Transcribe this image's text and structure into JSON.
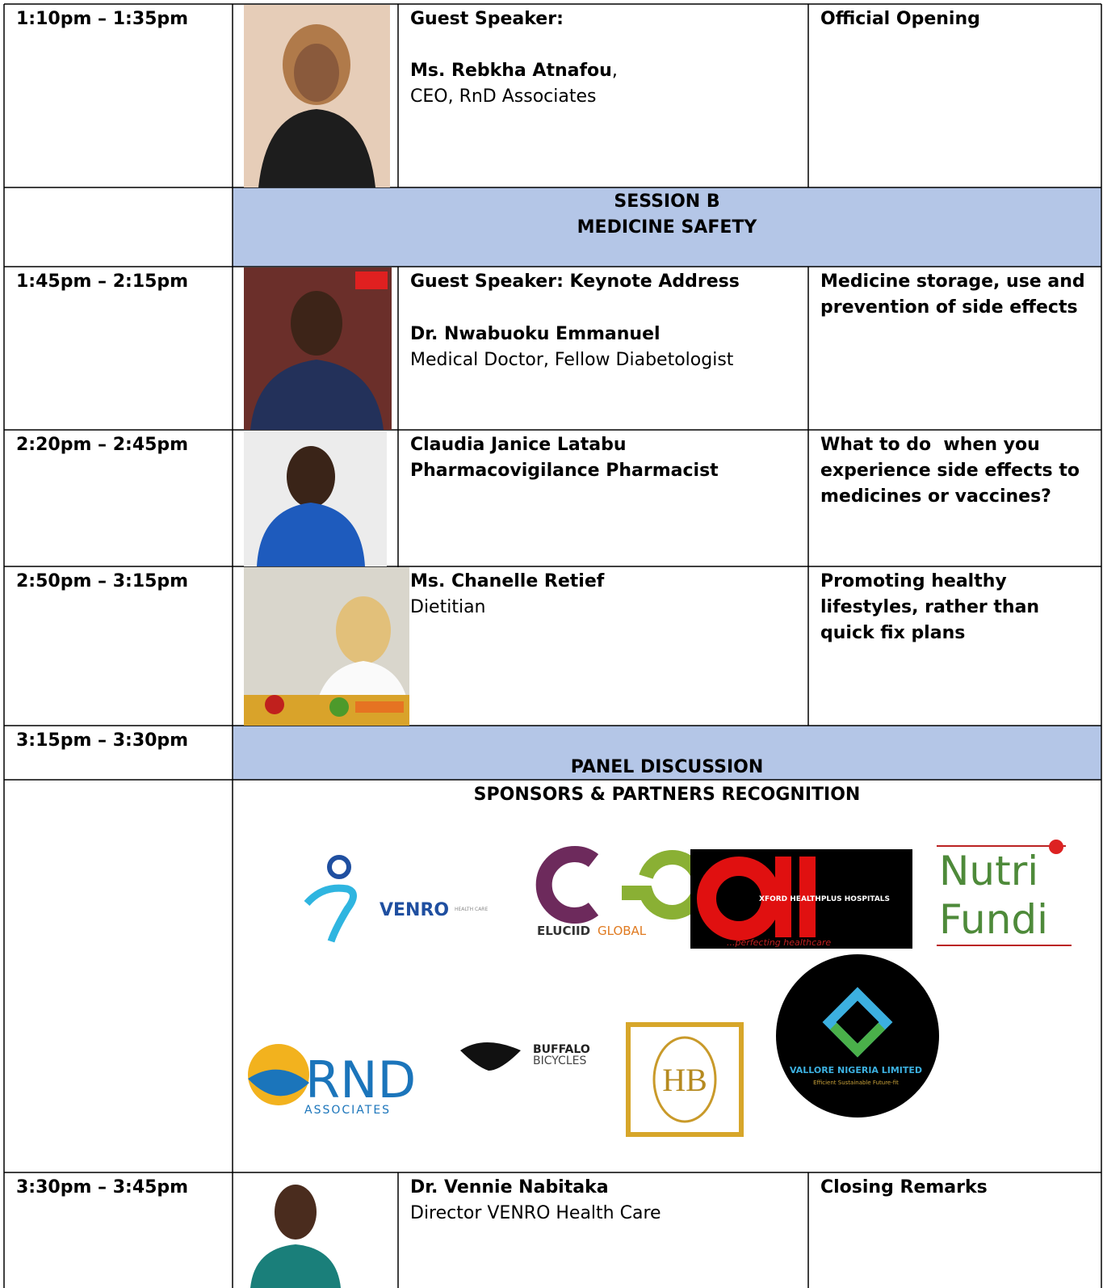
{
  "agenda": {
    "row1": {
      "time": "1:10pm – 1:35pm",
      "label": "Guest Speaker:",
      "name": "Ms. Rebkha Atnafou",
      "name_punctuation": ",",
      "role": "CEO, RnD Associates",
      "topic": "Official Opening"
    },
    "session_b": {
      "title": "SESSION B",
      "subtitle": "MEDICINE SAFETY"
    },
    "row2": {
      "time": "1:45pm – 2:15pm",
      "label": "Guest Speaker: Keynote Address",
      "name": "Dr. Nwabuoku Emmanuel",
      "role": "Medical Doctor, Fellow Diabetologist",
      "topic": "Medicine storage, use and prevention of side effects"
    },
    "row3": {
      "time": "2:20pm – 2:45pm",
      "name": "Claudia Janice Latabu",
      "role": "Pharmacovigilance Pharmacist",
      "topic": "What to do  when you experience side effects to medicines or vaccines?"
    },
    "row4": {
      "time": "2:50pm – 3:15pm",
      "name": "Ms. Chanelle Retief",
      "role": "Dietitian",
      "topic": "Promoting healthy lifestyles, rather than quick fix plans"
    },
    "panel": {
      "time": "3:15pm – 3:30pm",
      "title": "PANEL DISCUSSION"
    },
    "sponsors": {
      "title": "SPONSORS & PARTNERS RECOGNITION",
      "logos": {
        "venro": {
          "name": "VENRO",
          "tag": "HEALTH CARE"
        },
        "elucid": {
          "name": "ELUCIID",
          "tag": "GLOBAL"
        },
        "oxford": {
          "name": "XFORD HEALTHPLUS HOSPITALS",
          "tag": "...perfecting healthcare"
        },
        "nutri": {
          "line1": "Nutri",
          "line2": "Fundi"
        },
        "rnd": {
          "name": "RND",
          "tag": "ASSOCIATES"
        },
        "buffalo": {
          "line1": "BUFFALO",
          "line2": "BICYCLES"
        },
        "hb": {
          "name": "HB"
        },
        "vallore": {
          "name": "VALLORE NIGERIA LIMITED",
          "tag": "Efficient  Sustainable  Future-fit"
        }
      }
    },
    "row5": {
      "time": "3:30pm – 3:45pm",
      "name": "Dr. Vennie Nabitaka",
      "role": "Director VENRO Health Care",
      "topic": "Closing Remarks"
    }
  }
}
